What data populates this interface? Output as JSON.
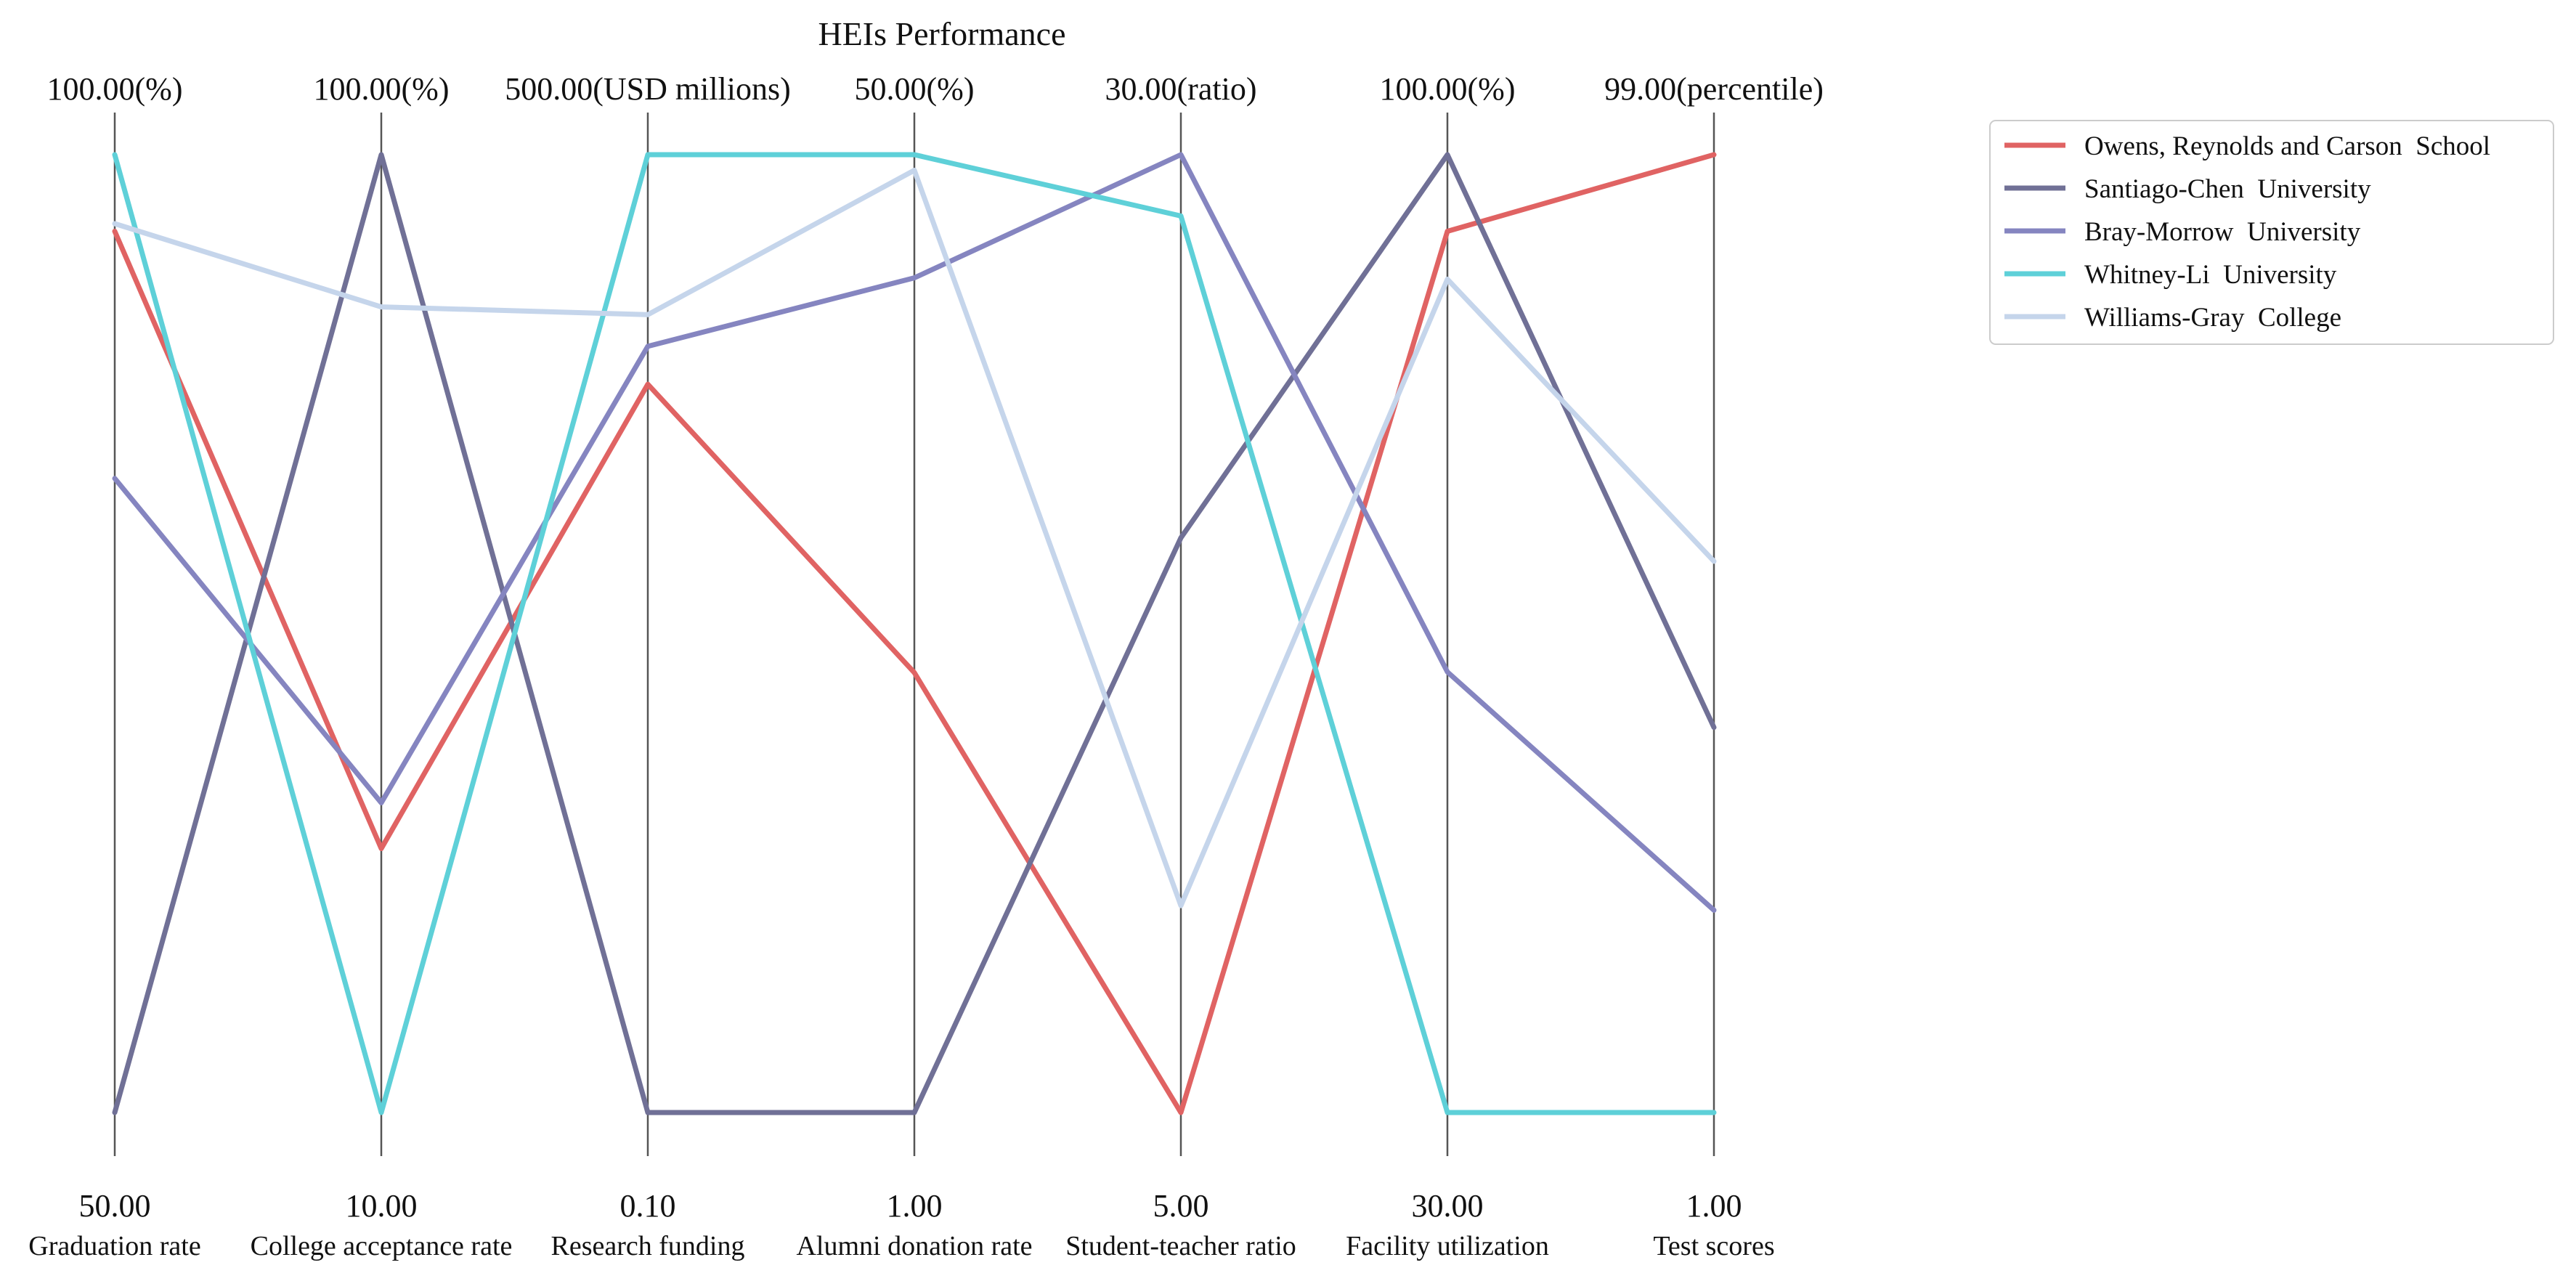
{
  "chart_data": {
    "type": "parallel-coordinates",
    "title": "HEIs Performance",
    "axes": [
      {
        "name": "Graduation rate",
        "min": 50,
        "max": 100,
        "min_label": "50.00",
        "max_label": "100.00(%)"
      },
      {
        "name": "College acceptance rate",
        "min": 10,
        "max": 100,
        "min_label": "10.00",
        "max_label": "100.00(%)"
      },
      {
        "name": "Research funding",
        "min": 0.1,
        "max": 500,
        "min_label": "0.10",
        "max_label": "500.00(USD millions)"
      },
      {
        "name": "Alumni donation rate",
        "min": 1,
        "max": 50,
        "min_label": "1.00",
        "max_label": "50.00(%)"
      },
      {
        "name": "Student-teacher ratio",
        "min": 5,
        "max": 30,
        "min_label": "5.00",
        "max_label": "30.00(ratio)"
      },
      {
        "name": "Facility utilization",
        "min": 30,
        "max": 100,
        "min_label": "30.00",
        "max_label": "100.00(%)"
      },
      {
        "name": "Test scores",
        "min": 1,
        "max": 99,
        "min_label": "1.00",
        "max_label": "99.00(percentile)"
      }
    ],
    "series": [
      {
        "name": "Owens, Reynolds and Carson  School",
        "color": "#e06363",
        "values": [
          96,
          34.8,
          380.2,
          23.5,
          5,
          94.4,
          99
        ]
      },
      {
        "name": "Santiago-Chen  University",
        "color": "#707096",
        "values": [
          50,
          100,
          0.1,
          1,
          20,
          100,
          40.4
        ]
      },
      {
        "name": "Bray-Morrow  University",
        "color": "#8585c0",
        "values": [
          83.1,
          39.1,
          400,
          43.7,
          30,
          62.2,
          21.7
        ]
      },
      {
        "name": "Whitney-Li  University",
        "color": "#5ed0d8",
        "values": [
          100,
          10,
          500,
          50,
          28.4,
          30,
          1
        ]
      },
      {
        "name": "Williams-Gray  College",
        "color": "#c5d5eb",
        "values": [
          96.4,
          85.7,
          416.5,
          49.2,
          10.4,
          90.9,
          57.4
        ]
      }
    ],
    "legend_position": "top-right",
    "grid": false
  }
}
